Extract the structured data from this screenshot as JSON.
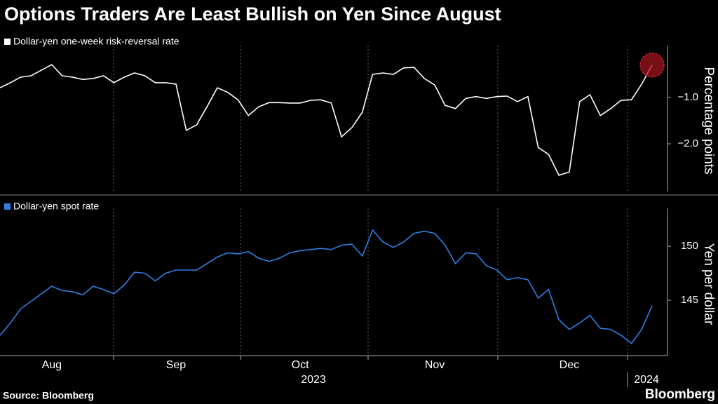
{
  "title": "Options Traders Are Least Bullish on Yen Since August",
  "source": "Source: Bloomberg",
  "logo": "Bloomberg",
  "chart_data": [
    {
      "type": "line",
      "ylabel": "Percentage points",
      "categories": [
        null,
        null,
        null,
        null,
        null,
        null,
        null,
        null,
        null,
        null,
        null,
        null,
        null,
        null,
        null,
        null,
        null,
        null,
        null,
        null,
        null,
        null,
        null,
        null,
        null,
        null,
        null,
        null,
        null,
        null,
        null,
        null,
        null,
        null,
        null,
        null,
        null,
        null,
        null,
        null,
        null,
        null,
        null,
        null,
        null,
        null,
        null,
        null,
        null,
        null,
        null,
        null,
        null,
        null,
        null,
        null,
        null,
        null,
        null,
        null,
        null,
        null,
        null,
        null
      ],
      "series": [
        {
          "name": "Dollar-yen one-week risk-reversal rate",
          "color": "#ffffff",
          "values": [
            -0.79,
            -0.68,
            -0.56,
            -0.53,
            -0.41,
            -0.29,
            -0.53,
            -0.56,
            -0.61,
            -0.59,
            -0.53,
            -0.68,
            -0.56,
            -0.47,
            -0.53,
            -0.68,
            -0.68,
            -0.71,
            -1.71,
            -1.59,
            -1.2,
            -0.79,
            -0.89,
            -1.05,
            -1.39,
            -1.2,
            -1.11,
            -1.11,
            -1.12,
            -1.12,
            -1.06,
            -1.05,
            -1.12,
            -1.85,
            -1.65,
            -1.32,
            -0.5,
            -0.47,
            -0.5,
            -0.36,
            -0.35,
            -0.59,
            -0.73,
            -1.17,
            -1.24,
            -1.02,
            -0.98,
            -1.02,
            -0.98,
            -0.97,
            -1.09,
            -0.98,
            -2.08,
            -2.23,
            -2.68,
            -2.61,
            -1.09,
            -0.94,
            -1.39,
            -1.24,
            -1.06,
            -1.05,
            -0.71,
            -0.3
          ]
        }
      ],
      "ylim": [
        -3,
        0
      ],
      "yticks": [
        {
          "value": -1,
          "label": "−1.0"
        },
        {
          "value": -2,
          "label": "−2.0"
        }
      ]
    },
    {
      "type": "line",
      "ylabel": "Yen per dollar",
      "categories": [
        null,
        null,
        null,
        null,
        null,
        "Aug",
        null,
        null,
        null,
        null,
        null,
        null,
        null,
        null,
        null,
        null,
        null,
        "Sep",
        null,
        null,
        null,
        null,
        null,
        null,
        null,
        null,
        null,
        null,
        null,
        "Oct",
        null,
        null,
        null,
        null,
        null,
        null,
        null,
        null,
        null,
        null,
        null,
        null,
        "Nov",
        null,
        null,
        null,
        null,
        null,
        null,
        null,
        null,
        null,
        null,
        null,
        null,
        "Dec",
        null,
        null,
        null,
        null,
        null,
        null,
        null,
        null
      ],
      "x_years": [
        "2023",
        "2024"
      ],
      "series": [
        {
          "name": "Dollar-yen spot rate",
          "color": "#2f7fe0",
          "values": [
            141.75,
            142.9,
            144.2,
            144.9,
            145.6,
            146.3,
            145.9,
            145.8,
            145.5,
            146.3,
            146.0,
            145.6,
            146.4,
            147.6,
            147.5,
            146.8,
            147.5,
            147.8,
            147.8,
            147.8,
            148.4,
            149.0,
            149.4,
            149.3,
            149.5,
            148.9,
            148.6,
            148.9,
            149.4,
            149.6,
            149.7,
            149.8,
            149.7,
            150.1,
            150.2,
            149.1,
            151.5,
            150.4,
            149.9,
            150.4,
            151.2,
            151.4,
            151.2,
            150.1,
            148.4,
            149.4,
            149.3,
            148.2,
            147.8,
            146.9,
            147.1,
            146.9,
            145.2,
            146.0,
            143.2,
            142.3,
            142.9,
            143.6,
            142.4,
            142.3,
            141.75,
            141.0,
            142.3,
            144.5
          ]
        }
      ],
      "ylim": [
        140,
        153
      ],
      "yticks": [
        150,
        145
      ]
    }
  ]
}
